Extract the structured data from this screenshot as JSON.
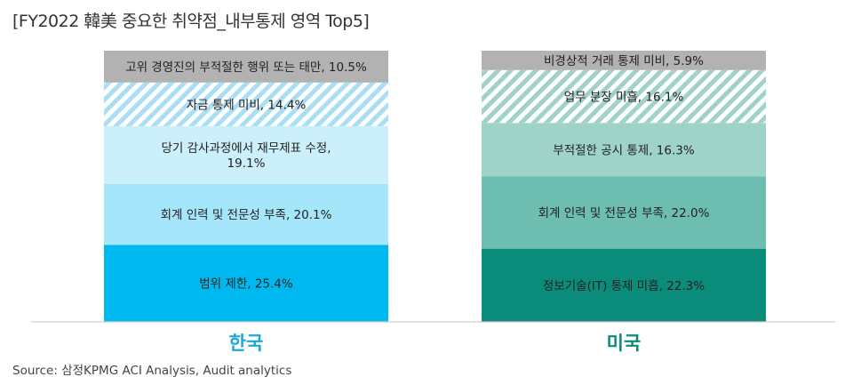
{
  "chart_data": {
    "type": "bar",
    "stacked": true,
    "normalized_per_bar": true,
    "title": "[FY2022 韓美 중요한 취약점_내부통제 영역 Top5]",
    "categories": [
      "한국",
      "미국"
    ],
    "category_colors": [
      "#1aa9d8",
      "#0b8c7a"
    ],
    "bars": [
      {
        "category": "한국",
        "segments": [
          {
            "label": "범위 제한, 25.4%",
            "value": 25.4,
            "color": "#00b8f0",
            "hatched": false
          },
          {
            "label": "회계 인력 및 전문성 부족, 20.1%",
            "value": 20.1,
            "color": "#a6e6fa",
            "hatched": false
          },
          {
            "label": "당기 감사과정에서 재무제표 수정,\n19.1%",
            "value": 19.1,
            "color": "#ccf0fb",
            "hatched": false
          },
          {
            "label": "자금 통제 미비, 14.4%",
            "value": 14.4,
            "color": "#a8dff2",
            "hatched": true
          },
          {
            "label": "고위 경영진의 부적절한 행위 또는 태만, 10.5%",
            "value": 10.5,
            "color": "#b2b2b2",
            "hatched": false
          }
        ]
      },
      {
        "category": "미국",
        "segments": [
          {
            "label": "정보기술(IT) 통제 미흡, 22.3%",
            "value": 22.3,
            "color": "#0b8c7a",
            "hatched": false
          },
          {
            "label": "회계 인력 및 전문성 부족, 22.0%",
            "value": 22.0,
            "color": "#6dbdb1",
            "hatched": false
          },
          {
            "label": "부적절한 공시 통제, 16.3%",
            "value": 16.3,
            "color": "#9fd3ca",
            "hatched": false
          },
          {
            "label": "업무 분장 미흡, 16.1%",
            "value": 16.1,
            "color": "#9fd3ca",
            "hatched": true
          },
          {
            "label": "비경상적 거래 통제 미비, 5.9%",
            "value": 5.9,
            "color": "#b2b2b2",
            "hatched": false
          }
        ]
      }
    ],
    "source": "Source: 삼정KPMG ACI Analysis, Audit analytics"
  }
}
